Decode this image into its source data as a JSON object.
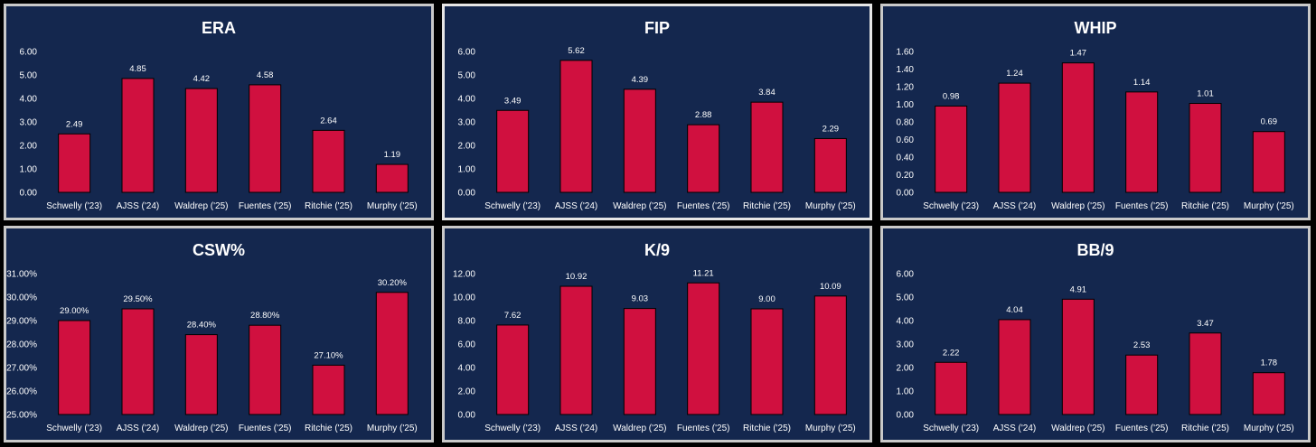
{
  "colors": {
    "background": "#000000",
    "panel": "#14274e",
    "bar": "#d0103f",
    "text": "#ffffff"
  },
  "chart_data": [
    {
      "type": "bar",
      "title": "ERA",
      "categories": [
        "Schwelly ('23)",
        "AJSS ('24)",
        "Waldrep ('25)",
        "Fuentes ('25)",
        "Ritchie ('25)",
        "Murphy ('25)"
      ],
      "values": [
        2.49,
        4.85,
        4.42,
        4.58,
        2.64,
        1.19
      ],
      "value_labels": [
        "2.49",
        "4.85",
        "4.42",
        "4.58",
        "2.64",
        "1.19"
      ],
      "ylim": [
        0,
        6
      ],
      "yticks": [
        "0.00",
        "1.00",
        "2.00",
        "3.00",
        "4.00",
        "5.00",
        "6.00"
      ]
    },
    {
      "type": "bar",
      "title": "FIP",
      "categories": [
        "Schwelly ('23)",
        "AJSS ('24)",
        "Waldrep ('25)",
        "Fuentes ('25)",
        "Ritchie ('25)",
        "Murphy ('25)"
      ],
      "values": [
        3.49,
        5.62,
        4.39,
        2.88,
        3.84,
        2.29
      ],
      "value_labels": [
        "3.49",
        "5.62",
        "4.39",
        "2.88",
        "3.84",
        "2.29"
      ],
      "ylim": [
        0,
        6
      ],
      "yticks": [
        "0.00",
        "1.00",
        "2.00",
        "3.00",
        "4.00",
        "5.00",
        "6.00"
      ]
    },
    {
      "type": "bar",
      "title": "WHIP",
      "categories": [
        "Schwelly ('23)",
        "AJSS ('24)",
        "Waldrep ('25)",
        "Fuentes ('25)",
        "Ritchie ('25)",
        "Murphy ('25)"
      ],
      "values": [
        0.98,
        1.24,
        1.47,
        1.14,
        1.01,
        0.69
      ],
      "value_labels": [
        "0.98",
        "1.24",
        "1.47",
        "1.14",
        "1.01",
        "0.69"
      ],
      "ylim": [
        0,
        1.6
      ],
      "yticks": [
        "0.00",
        "0.20",
        "0.40",
        "0.60",
        "0.80",
        "1.00",
        "1.20",
        "1.40",
        "1.60"
      ]
    },
    {
      "type": "bar",
      "title": "CSW%",
      "categories": [
        "Schwelly ('23)",
        "AJSS ('24)",
        "Waldrep ('25)",
        "Fuentes ('25)",
        "Ritchie ('25)",
        "Murphy ('25)"
      ],
      "values": [
        29.0,
        29.5,
        28.4,
        28.8,
        27.1,
        30.2
      ],
      "value_labels": [
        "29.00%",
        "29.50%",
        "28.40%",
        "28.80%",
        "27.10%",
        "30.20%"
      ],
      "ylim": [
        25,
        31
      ],
      "yticks": [
        "25.00%",
        "26.00%",
        "27.00%",
        "28.00%",
        "29.00%",
        "30.00%",
        "31.00%"
      ]
    },
    {
      "type": "bar",
      "title": "K/9",
      "categories": [
        "Schwelly ('23)",
        "AJSS ('24)",
        "Waldrep ('25)",
        "Fuentes ('25)",
        "Ritchie ('25)",
        "Murphy ('25)"
      ],
      "values": [
        7.62,
        10.92,
        9.03,
        11.21,
        9.0,
        10.09
      ],
      "value_labels": [
        "7.62",
        "10.92",
        "9.03",
        "11.21",
        "9.00",
        "10.09"
      ],
      "ylim": [
        0,
        12
      ],
      "yticks": [
        "0.00",
        "2.00",
        "4.00",
        "6.00",
        "8.00",
        "10.00",
        "12.00"
      ]
    },
    {
      "type": "bar",
      "title": "BB/9",
      "categories": [
        "Schwelly ('23)",
        "AJSS ('24)",
        "Waldrep ('25)",
        "Fuentes ('25)",
        "Ritchie ('25)",
        "Murphy ('25)"
      ],
      "values": [
        2.22,
        4.04,
        4.91,
        2.53,
        3.47,
        1.78
      ],
      "value_labels": [
        "2.22",
        "4.04",
        "4.91",
        "2.53",
        "3.47",
        "1.78"
      ],
      "ylim": [
        0,
        6
      ],
      "yticks": [
        "0.00",
        "1.00",
        "2.00",
        "3.00",
        "4.00",
        "5.00",
        "6.00"
      ]
    }
  ]
}
